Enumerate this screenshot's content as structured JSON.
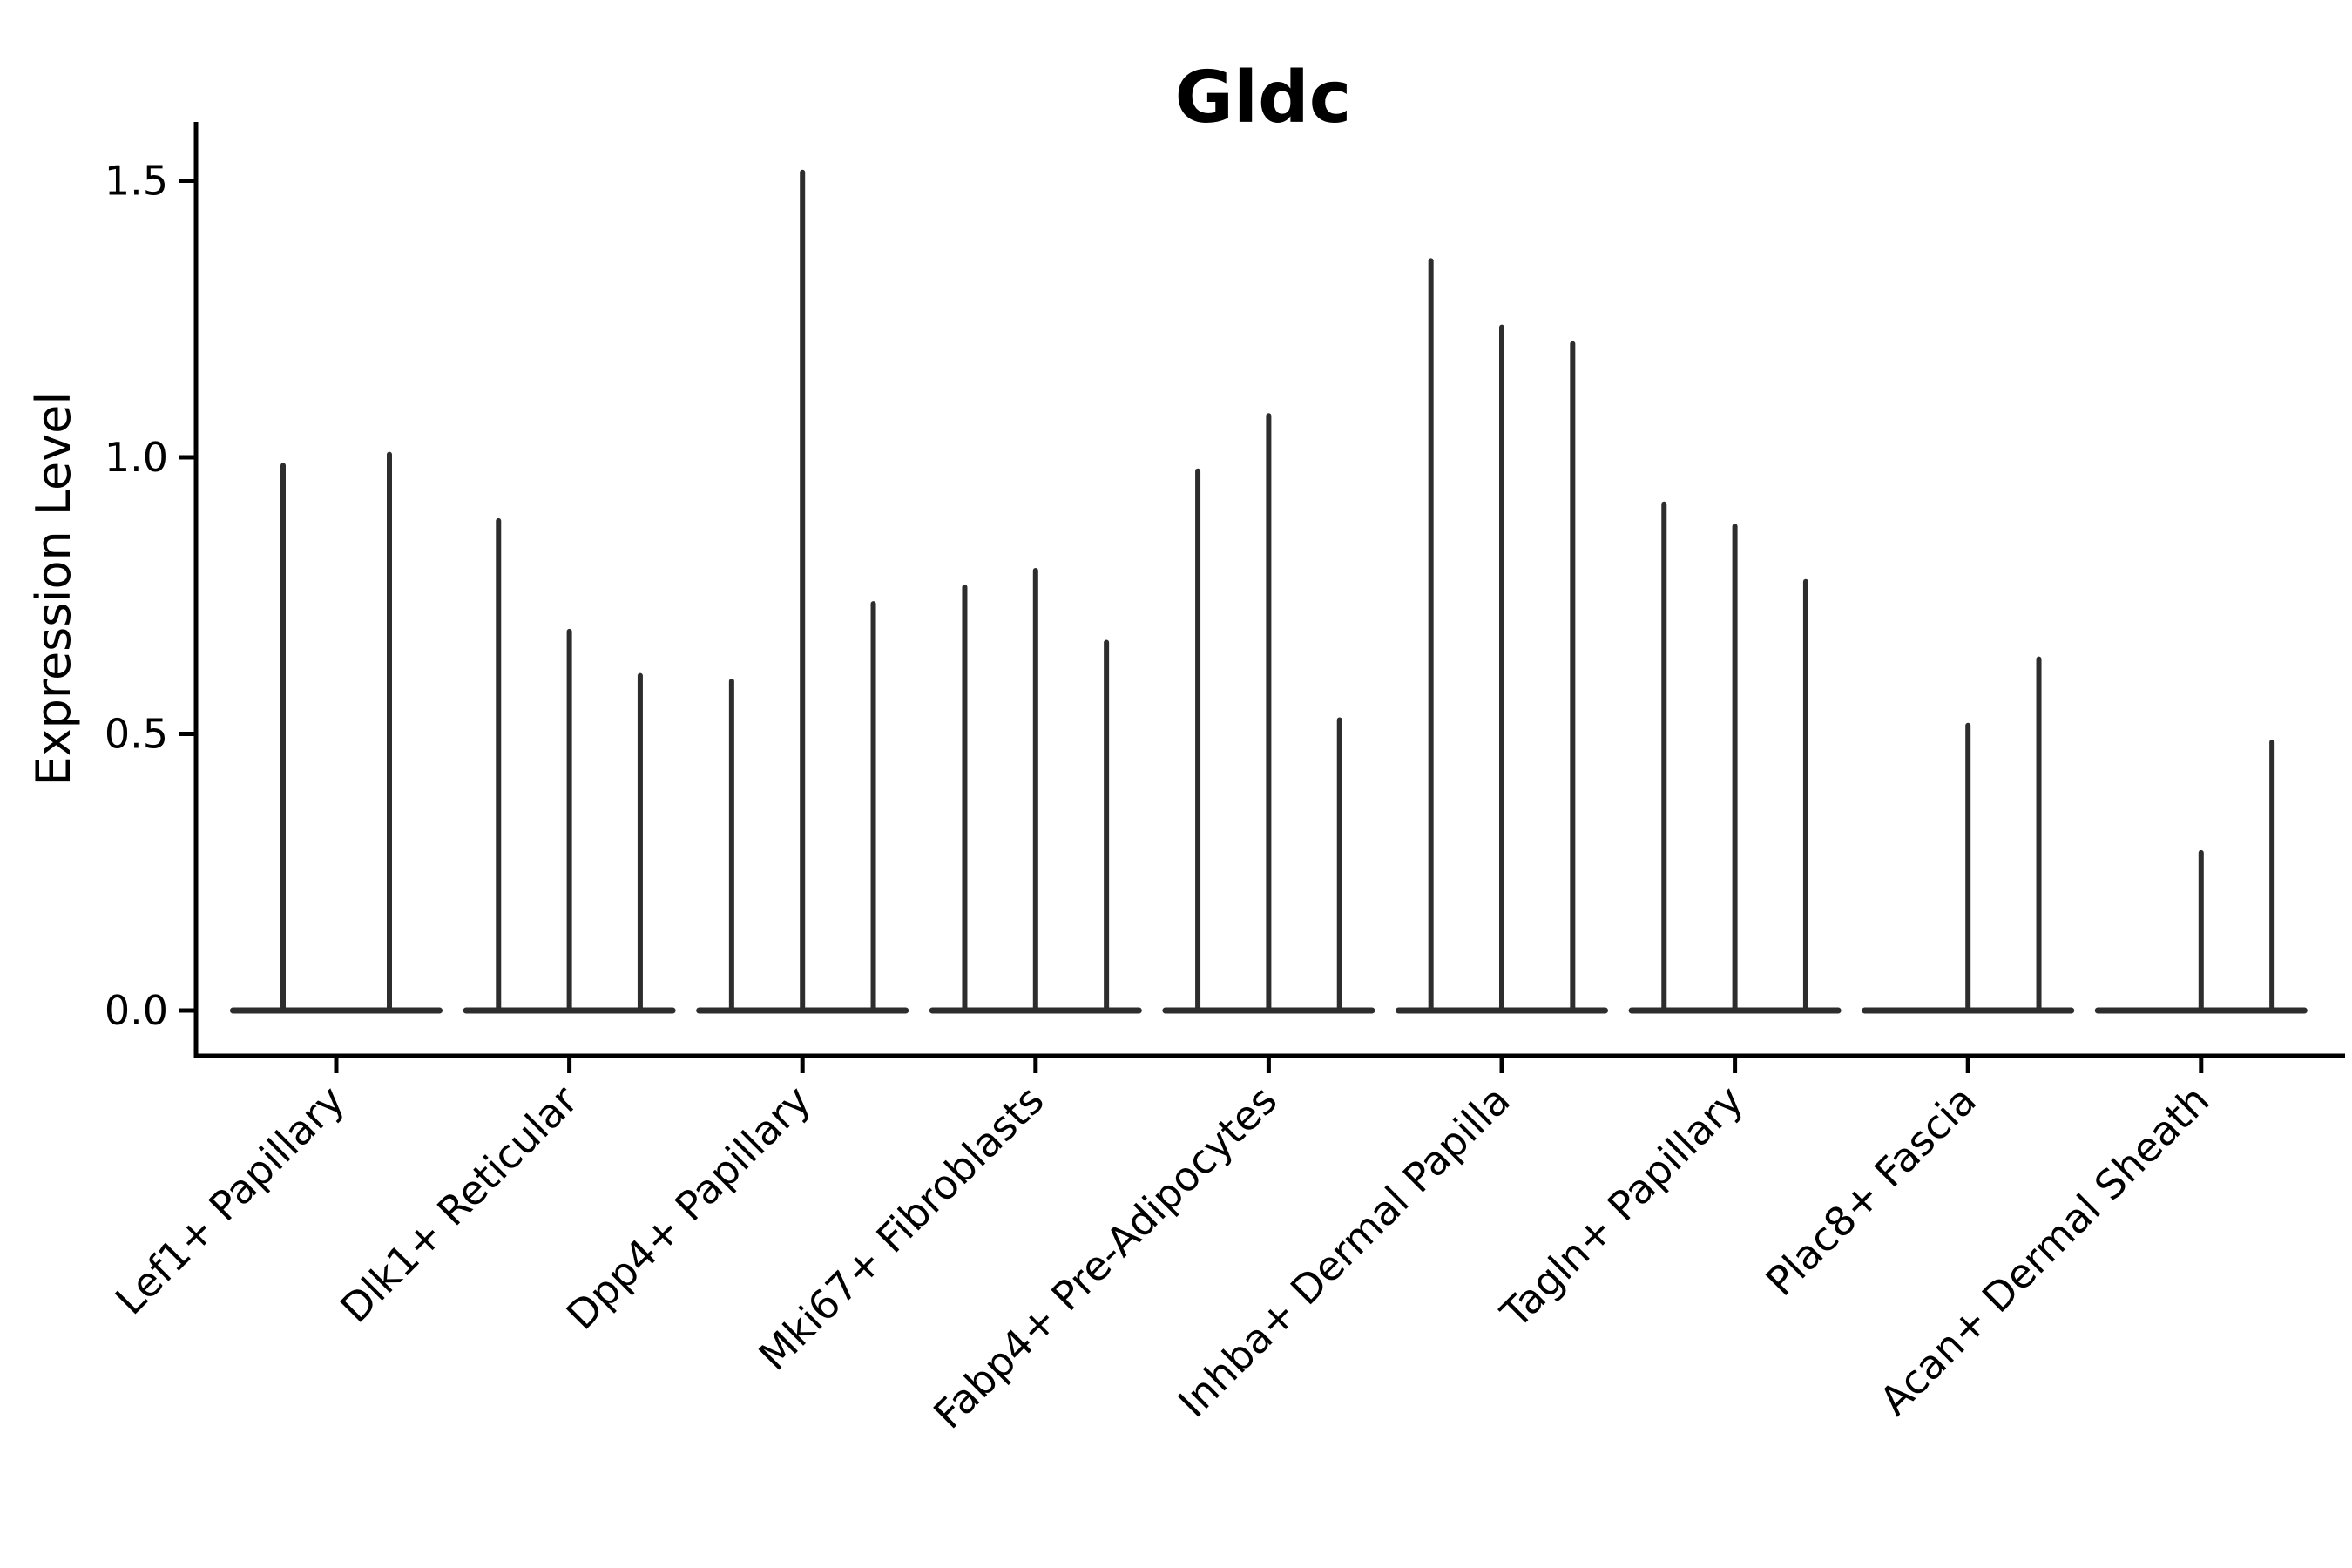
{
  "figure": {
    "background": "#ffffff"
  },
  "colors": {
    "axis": "#000000",
    "text": "#000000",
    "violin": "#2d2d2d"
  },
  "chart_data": {
    "type": "violin",
    "title": "Gldc",
    "xlabel": "",
    "ylabel": "Expression Level",
    "ylim": [
      0,
      1.6
    ],
    "yticks": [
      0,
      0.5,
      1.0,
      1.5
    ],
    "ytick_decimals": 1,
    "grid": false,
    "legend": "none",
    "x_tick_label_rotation_deg": 45,
    "note": "Each category shows 2-3 ultra-thin violins (spikes) rising from a flat zero-expression baseline; a max value of 0 means a completely flat violin with no spike.",
    "categories": [
      "Lef1+ Papillary",
      "Dlk1+ Reticular",
      "Dpp4+ Papillary",
      "Mki67+ Fibroblasts",
      "Fabp4+ Pre-Adipocytes",
      "Inhba+ Dermal Papilla",
      "Tagln+ Papillary",
      "Plac8+ Fascia",
      "Acan+ Dermal Sheath"
    ],
    "groups": [
      {
        "label": "Lef1+ Papillary",
        "violin_max_values": [
          0.99,
          1.01
        ]
      },
      {
        "label": "Dlk1+ Reticular",
        "violin_max_values": [
          0.89,
          0.69,
          0.61
        ]
      },
      {
        "label": "Dpp4+ Papillary",
        "violin_max_values": [
          0.6,
          1.52,
          0.74
        ]
      },
      {
        "label": "Mki67+ Fibroblasts",
        "violin_max_values": [
          0.77,
          0.8,
          0.67
        ]
      },
      {
        "label": "Fabp4+ Pre-Adipocytes",
        "violin_max_values": [
          0.98,
          1.08,
          0.53
        ]
      },
      {
        "label": "Inhba+ Dermal Papilla",
        "violin_max_values": [
          1.36,
          1.24,
          1.21
        ]
      },
      {
        "label": "Tagln+ Papillary",
        "violin_max_values": [
          0.92,
          0.88,
          0.78
        ]
      },
      {
        "label": "Plac8+ Fascia",
        "violin_max_values": [
          0,
          0.52,
          0.64
        ]
      },
      {
        "label": "Acan+ Dermal Sheath",
        "violin_max_values": [
          0,
          0.29,
          0.49
        ]
      }
    ]
  }
}
